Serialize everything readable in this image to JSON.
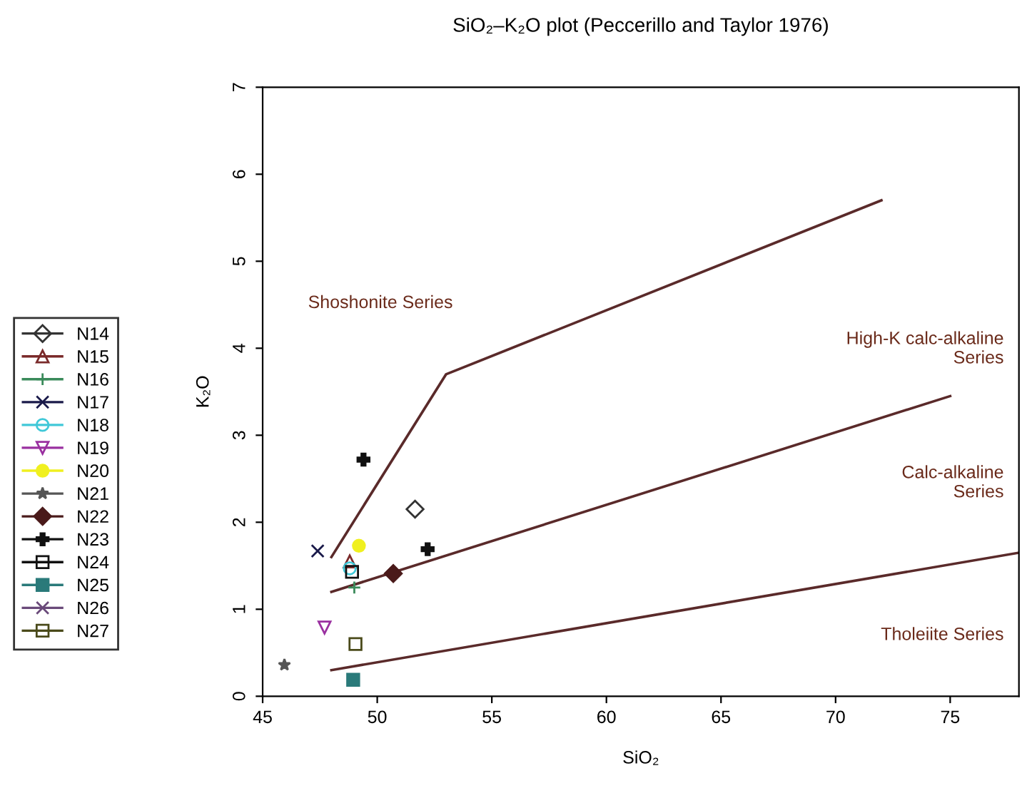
{
  "chart_data": {
    "type": "scatter",
    "title": "SiO₂–K₂O plot (Peccerillo and Taylor 1976)",
    "xlabel": "SiO₂",
    "ylabel": "K₂O",
    "xlim": [
      45,
      78
    ],
    "ylim": [
      0,
      7
    ],
    "xticks": [
      45,
      50,
      55,
      60,
      65,
      70,
      75
    ],
    "yticks": [
      0,
      1,
      2,
      3,
      4,
      5,
      6,
      7
    ],
    "grid": false,
    "legend": "left",
    "series": [
      {
        "type": "line",
        "color": "#5a2a2a",
        "marker": "none",
        "x": [
          48,
          53,
          72
        ],
        "values": [
          1.6,
          3.7,
          5.7
        ]
      },
      {
        "type": "line",
        "color": "#5a2a2a",
        "marker": "none",
        "x": [
          48,
          75
        ],
        "values": [
          1.2,
          3.45
        ]
      },
      {
        "type": "line",
        "color": "#5a2a2a",
        "marker": "none",
        "x": [
          48,
          78
        ],
        "values": [
          0.3,
          1.65
        ]
      },
      {
        "name": "N14",
        "color": "#333333",
        "marker": "diamond-open",
        "x": [
          51.65
        ],
        "values": [
          2.15
        ]
      },
      {
        "name": "N15",
        "color": "#7a2a2a",
        "marker": "triangle-open",
        "x": [
          48.8
        ],
        "values": [
          1.55
        ]
      },
      {
        "name": "N16",
        "color": "#3a8a5a",
        "marker": "plus",
        "x": [
          49.0
        ],
        "values": [
          1.25
        ]
      },
      {
        "name": "N17",
        "color": "#1a1a4a",
        "marker": "x",
        "x": [
          47.4
        ],
        "values": [
          1.67
        ]
      },
      {
        "name": "N18",
        "color": "#40c8d8",
        "marker": "circle-open",
        "x": [
          48.8
        ],
        "values": [
          1.47
        ]
      },
      {
        "name": "N19",
        "color": "#9a30a0",
        "marker": "triangle-down-open",
        "x": [
          47.7
        ],
        "values": [
          0.79
        ]
      },
      {
        "name": "N20",
        "color": "#f0f020",
        "marker": "circle",
        "x": [
          49.2
        ],
        "values": [
          1.73
        ]
      },
      {
        "name": "N21",
        "color": "#555555",
        "marker": "star",
        "x": [
          45.95
        ],
        "values": [
          0.36
        ]
      },
      {
        "name": "N22",
        "color": "#4a1a1a",
        "marker": "diamond",
        "x": [
          50.7
        ],
        "values": [
          1.41
        ]
      },
      {
        "name": "N23",
        "color": "#111111",
        "marker": "cross",
        "x": [
          49.4,
          52.2
        ],
        "values": [
          2.72,
          1.69
        ]
      },
      {
        "name": "N24",
        "color": "#111111",
        "marker": "square-x",
        "x": [
          48.9
        ],
        "values": [
          1.43
        ]
      },
      {
        "name": "N25",
        "color": "#2a7a7a",
        "marker": "square",
        "x": [
          48.95
        ],
        "values": [
          0.19
        ]
      },
      {
        "name": "N26",
        "color": "#6a4a7a",
        "marker": "x",
        "x": [
          null
        ],
        "values": [
          null
        ]
      },
      {
        "name": "N27",
        "color": "#4a4a1a",
        "marker": "square-open",
        "x": [
          49.05
        ],
        "values": [
          0.6
        ]
      }
    ],
    "annotations": [
      "Shoshonite Series",
      "High-K calc-alkaline\nSeries",
      "Calc-alkaline\nSeries",
      "Tholeiite Series"
    ]
  }
}
